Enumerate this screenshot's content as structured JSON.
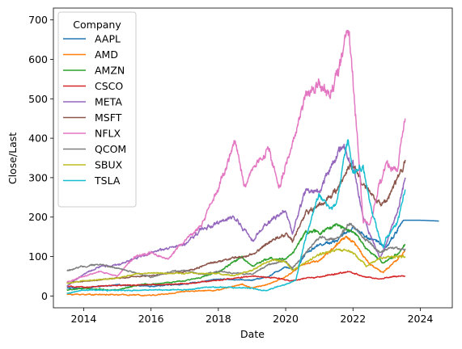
{
  "chart_data": {
    "type": "line",
    "title": "",
    "xlabel": "Date",
    "ylabel": "Close/Last",
    "xlim": [
      2013.1,
      2024.95
    ],
    "ylim": [
      -30,
      730
    ],
    "x_ticks": [
      "2014",
      "2016",
      "2018",
      "2020",
      "2022",
      "2024"
    ],
    "y_ticks": [
      "0",
      "100",
      "200",
      "300",
      "400",
      "500",
      "600",
      "700"
    ],
    "grid": false,
    "legend": {
      "title": "Company",
      "placement": "top-left"
    },
    "series": [
      {
        "name": "AAPL",
        "color": "#1f77b4",
        "points": [
          [
            2013.5,
            20
          ],
          [
            2014,
            20
          ],
          [
            2015,
            28
          ],
          [
            2016,
            25
          ],
          [
            2017,
            30
          ],
          [
            2018,
            43
          ],
          [
            2019,
            40
          ],
          [
            2019.5,
            50
          ],
          [
            2020,
            75
          ],
          [
            2020.3,
            65
          ],
          [
            2020.6,
            110
          ],
          [
            2021,
            130
          ],
          [
            2021.5,
            140
          ],
          [
            2022,
            175
          ],
          [
            2022.4,
            150
          ],
          [
            2022.9,
            130
          ],
          [
            2023,
            125
          ],
          [
            2023.5,
            192
          ],
          [
            2024.0,
            192
          ],
          [
            2024.55,
            190
          ]
        ]
      },
      {
        "name": "AMD",
        "color": "#ff7f0e",
        "points": [
          [
            2013.5,
            4
          ],
          [
            2014,
            4
          ],
          [
            2015,
            3
          ],
          [
            2016,
            2
          ],
          [
            2016.5,
            5
          ],
          [
            2017,
            12
          ],
          [
            2018,
            15
          ],
          [
            2018.7,
            30
          ],
          [
            2019,
            20
          ],
          [
            2019.5,
            30
          ],
          [
            2020,
            48
          ],
          [
            2020.5,
            80
          ],
          [
            2021,
            90
          ],
          [
            2021.8,
            150
          ],
          [
            2022,
            140
          ],
          [
            2022.5,
            80
          ],
          [
            2022.9,
            60
          ],
          [
            2023.3,
            90
          ],
          [
            2023.55,
            115
          ]
        ]
      },
      {
        "name": "AMZN",
        "color": "#2ca02c",
        "points": [
          [
            2013.5,
            15
          ],
          [
            2014,
            19
          ],
          [
            2015,
            15
          ],
          [
            2015.8,
            30
          ],
          [
            2016,
            30
          ],
          [
            2017,
            38
          ],
          [
            2017.5,
            48
          ],
          [
            2018,
            60
          ],
          [
            2018.7,
            100
          ],
          [
            2019,
            75
          ],
          [
            2019.5,
            95
          ],
          [
            2020,
            93
          ],
          [
            2020.3,
            120
          ],
          [
            2020.6,
            165
          ],
          [
            2021,
            160
          ],
          [
            2021.5,
            180
          ],
          [
            2022,
            165
          ],
          [
            2022.5,
            110
          ],
          [
            2022.9,
            85
          ],
          [
            2023.3,
            105
          ],
          [
            2023.55,
            130
          ]
        ]
      },
      {
        "name": "CSCO",
        "color": "#d62728",
        "points": [
          [
            2013.5,
            24
          ],
          [
            2014,
            22
          ],
          [
            2015,
            27
          ],
          [
            2016,
            28
          ],
          [
            2017,
            31
          ],
          [
            2018,
            40
          ],
          [
            2019,
            50
          ],
          [
            2019.8,
            45
          ],
          [
            2020.2,
            38
          ],
          [
            2020.6,
            45
          ],
          [
            2021,
            48
          ],
          [
            2021.9,
            62
          ],
          [
            2022.3,
            50
          ],
          [
            2022.8,
            42
          ],
          [
            2023,
            47
          ],
          [
            2023.55,
            51
          ]
        ]
      },
      {
        "name": "META",
        "color": "#9467bd",
        "points": [
          [
            2013.5,
            25
          ],
          [
            2014,
            55
          ],
          [
            2014.5,
            75
          ],
          [
            2015,
            78
          ],
          [
            2015.5,
            95
          ],
          [
            2016,
            110
          ],
          [
            2016.5,
            120
          ],
          [
            2017,
            130
          ],
          [
            2017.5,
            170
          ],
          [
            2018,
            185
          ],
          [
            2018.5,
            200
          ],
          [
            2019,
            140
          ],
          [
            2019.5,
            190
          ],
          [
            2020,
            215
          ],
          [
            2020.2,
            160
          ],
          [
            2020.6,
            270
          ],
          [
            2021,
            265
          ],
          [
            2021.3,
            320
          ],
          [
            2021.7,
            380
          ],
          [
            2022,
            330
          ],
          [
            2022.3,
            200
          ],
          [
            2022.8,
            95
          ],
          [
            2023,
            135
          ],
          [
            2023.3,
            210
          ],
          [
            2023.55,
            300
          ]
        ]
      },
      {
        "name": "MSFT",
        "color": "#8c564b",
        "points": [
          [
            2013.5,
            33
          ],
          [
            2014,
            37
          ],
          [
            2015,
            45
          ],
          [
            2016,
            52
          ],
          [
            2017,
            62
          ],
          [
            2018,
            88
          ],
          [
            2019,
            105
          ],
          [
            2019.5,
            135
          ],
          [
            2020,
            160
          ],
          [
            2020.2,
            140
          ],
          [
            2020.6,
            210
          ],
          [
            2021,
            230
          ],
          [
            2021.5,
            270
          ],
          [
            2021.95,
            335
          ],
          [
            2022.3,
            280
          ],
          [
            2022.8,
            230
          ],
          [
            2023,
            240
          ],
          [
            2023.3,
            290
          ],
          [
            2023.55,
            345
          ]
        ]
      },
      {
        "name": "NFLX",
        "color": "#e377c2",
        "points": [
          [
            2013.5,
            35
          ],
          [
            2014,
            50
          ],
          [
            2014.5,
            62
          ],
          [
            2015,
            50
          ],
          [
            2015.5,
            100
          ],
          [
            2016,
            110
          ],
          [
            2016.5,
            95
          ],
          [
            2017,
            140
          ],
          [
            2017.5,
            180
          ],
          [
            2018,
            270
          ],
          [
            2018.5,
            390
          ],
          [
            2018.8,
            270
          ],
          [
            2019,
            320
          ],
          [
            2019.5,
            370
          ],
          [
            2019.8,
            270
          ],
          [
            2020,
            330
          ],
          [
            2020.3,
            420
          ],
          [
            2020.6,
            520
          ],
          [
            2021,
            540
          ],
          [
            2021.3,
            500
          ],
          [
            2021.7,
            610
          ],
          [
            2021.85,
            690
          ],
          [
            2022,
            550
          ],
          [
            2022.3,
            190
          ],
          [
            2022.5,
            180
          ],
          [
            2022.8,
            290
          ],
          [
            2023,
            330
          ],
          [
            2023.3,
            320
          ],
          [
            2023.55,
            450
          ]
        ]
      },
      {
        "name": "QCOM",
        "color": "#7f7f7f",
        "points": [
          [
            2013.5,
            64
          ],
          [
            2014,
            75
          ],
          [
            2014.5,
            80
          ],
          [
            2015,
            70
          ],
          [
            2015.5,
            60
          ],
          [
            2016,
            48
          ],
          [
            2016.5,
            60
          ],
          [
            2017,
            65
          ],
          [
            2017.5,
            55
          ],
          [
            2018,
            62
          ],
          [
            2018.5,
            58
          ],
          [
            2019,
            55
          ],
          [
            2019.5,
            80
          ],
          [
            2020,
            88
          ],
          [
            2020.2,
            70
          ],
          [
            2020.6,
            110
          ],
          [
            2021,
            150
          ],
          [
            2021.5,
            140
          ],
          [
            2021.9,
            185
          ],
          [
            2022.3,
            150
          ],
          [
            2022.8,
            110
          ],
          [
            2023,
            120
          ],
          [
            2023.55,
            120
          ]
        ]
      },
      {
        "name": "SBUX",
        "color": "#bcbd22",
        "points": [
          [
            2013.5,
            32
          ],
          [
            2014,
            38
          ],
          [
            2015,
            45
          ],
          [
            2015.5,
            55
          ],
          [
            2016,
            58
          ],
          [
            2017,
            58
          ],
          [
            2018,
            57
          ],
          [
            2018.5,
            52
          ],
          [
            2019,
            65
          ],
          [
            2019.6,
            92
          ],
          [
            2020,
            88
          ],
          [
            2020.2,
            65
          ],
          [
            2020.6,
            85
          ],
          [
            2021,
            105
          ],
          [
            2021.5,
            118
          ],
          [
            2022,
            110
          ],
          [
            2022.4,
            75
          ],
          [
            2022.8,
            95
          ],
          [
            2023,
            100
          ],
          [
            2023.55,
            100
          ]
        ]
      },
      {
        "name": "TSLA",
        "color": "#17becf",
        "points": [
          [
            2013.5,
            7
          ],
          [
            2014,
            15
          ],
          [
            2015,
            14
          ],
          [
            2016,
            15
          ],
          [
            2017,
            15
          ],
          [
            2017.6,
            22
          ],
          [
            2018,
            22
          ],
          [
            2019,
            20
          ],
          [
            2019.4,
            13
          ],
          [
            2019.9,
            28
          ],
          [
            2020,
            30
          ],
          [
            2020.3,
            40
          ],
          [
            2020.6,
            150
          ],
          [
            2021,
            260
          ],
          [
            2021.3,
            220
          ],
          [
            2021.5,
            230
          ],
          [
            2021.85,
            400
          ],
          [
            2022,
            310
          ],
          [
            2022.3,
            330
          ],
          [
            2022.5,
            230
          ],
          [
            2022.9,
            120
          ],
          [
            2023,
            150
          ],
          [
            2023.3,
            180
          ],
          [
            2023.55,
            270
          ]
        ]
      }
    ]
  }
}
